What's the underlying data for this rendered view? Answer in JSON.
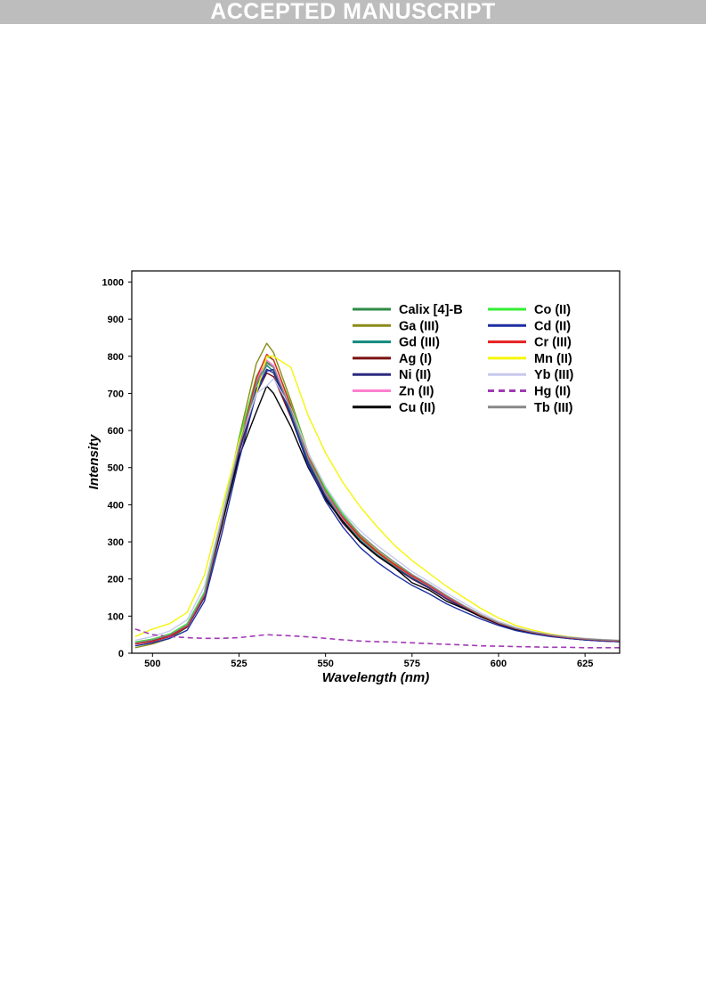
{
  "banner": {
    "text": "ACCEPTED MANUSCRIPT"
  },
  "chart_data": {
    "type": "line",
    "title": "",
    "xlabel": "Wavelength (nm)",
    "ylabel": "Intensity",
    "xlim": [
      494,
      635
    ],
    "ylim": [
      0,
      1030
    ],
    "xticks": [
      500,
      525,
      550,
      575,
      600,
      625
    ],
    "yticks": [
      0,
      100,
      200,
      300,
      400,
      500,
      600,
      700,
      800,
      900,
      1000
    ],
    "grid": false,
    "legend_position": "top-right",
    "legend_columns": 2,
    "x": [
      495,
      500,
      505,
      510,
      515,
      520,
      525,
      530,
      533,
      535,
      540,
      545,
      550,
      555,
      560,
      565,
      570,
      575,
      580,
      585,
      590,
      595,
      600,
      605,
      610,
      615,
      620,
      625,
      630,
      635
    ],
    "series": [
      {
        "name": "Calix [4]-B",
        "color": "#2e8b45",
        "dash": false,
        "values": [
          30,
          38,
          50,
          75,
          160,
          360,
          560,
          730,
          785,
          770,
          650,
          520,
          430,
          360,
          310,
          270,
          235,
          205,
          180,
          150,
          125,
          100,
          80,
          65,
          55,
          48,
          42,
          38,
          35,
          33
        ]
      },
      {
        "name": "Ga (III)",
        "color": "#8b8b1a",
        "dash": false,
        "values": [
          15,
          25,
          40,
          70,
          150,
          360,
          580,
          780,
          835,
          810,
          680,
          540,
          440,
          370,
          315,
          275,
          240,
          210,
          180,
          150,
          125,
          100,
          80,
          65,
          55,
          48,
          42,
          38,
          35,
          33
        ]
      },
      {
        "name": "Gd (III)",
        "color": "#138a7e",
        "dash": false,
        "values": [
          28,
          35,
          48,
          72,
          155,
          350,
          550,
          720,
          775,
          760,
          645,
          515,
          425,
          355,
          305,
          265,
          232,
          202,
          178,
          148,
          123,
          99,
          79,
          64,
          54,
          47,
          41,
          37,
          34,
          32
        ]
      },
      {
        "name": "Ag (I)",
        "color": "#7a1111",
        "dash": false,
        "values": [
          25,
          32,
          45,
          70,
          150,
          340,
          540,
          700,
          755,
          745,
          635,
          510,
          420,
          350,
          300,
          262,
          230,
          200,
          175,
          146,
          121,
          98,
          78,
          63,
          53,
          46,
          40,
          36,
          33,
          31
        ]
      },
      {
        "name": "Ni (II)",
        "color": "#2b2b80",
        "dash": false,
        "values": [
          25,
          32,
          45,
          70,
          150,
          345,
          545,
          710,
          765,
          755,
          640,
          512,
          422,
          352,
          302,
          263,
          231,
          201,
          176,
          147,
          122,
          99,
          79,
          63,
          53,
          46,
          40,
          36,
          33,
          31
        ]
      },
      {
        "name": "Zn (II)",
        "color": "#ff7fd0",
        "dash": false,
        "values": [
          30,
          38,
          52,
          78,
          165,
          365,
          565,
          735,
          790,
          775,
          655,
          525,
          432,
          362,
          312,
          272,
          237,
          207,
          181,
          151,
          126,
          101,
          81,
          66,
          56,
          49,
          43,
          39,
          36,
          34
        ]
      },
      {
        "name": "Cu (II)",
        "color": "#000000",
        "dash": false,
        "values": [
          28,
          35,
          48,
          72,
          160,
          345,
          530,
          650,
          720,
          700,
          610,
          500,
          415,
          355,
          300,
          262,
          230,
          190,
          170,
          140,
          120,
          98,
          80,
          64,
          54,
          47,
          41,
          37,
          34,
          32
        ]
      },
      {
        "name": "Co (II)",
        "color": "#33ee33",
        "dash": false,
        "values": [
          30,
          38,
          52,
          80,
          165,
          370,
          575,
          745,
          800,
          790,
          670,
          540,
          445,
          375,
          320,
          280,
          245,
          212,
          185,
          155,
          128,
          103,
          82,
          67,
          57,
          49,
          43,
          39,
          36,
          34
        ]
      },
      {
        "name": "Cd (II)",
        "color": "#1c2fa0",
        "dash": false,
        "values": [
          20,
          28,
          40,
          62,
          140,
          320,
          520,
          700,
          760,
          765,
          640,
          505,
          410,
          340,
          285,
          245,
          212,
          183,
          160,
          133,
          112,
          92,
          75,
          61,
          52,
          45,
          40,
          36,
          33,
          31
        ]
      },
      {
        "name": "Cr (III)",
        "color": "#e62020",
        "dash": false,
        "values": [
          25,
          32,
          46,
          72,
          155,
          355,
          555,
          740,
          805,
          790,
          665,
          530,
          435,
          365,
          312,
          272,
          238,
          208,
          182,
          152,
          126,
          101,
          81,
          66,
          56,
          48,
          42,
          38,
          35,
          33
        ]
      },
      {
        "name": "Mn (II)",
        "color": "#f5f50a",
        "dash": false,
        "values": [
          45,
          65,
          80,
          110,
          210,
          390,
          570,
          700,
          800,
          800,
          770,
          640,
          540,
          460,
          395,
          340,
          290,
          250,
          215,
          180,
          150,
          120,
          95,
          75,
          62,
          52,
          45,
          40,
          37,
          35
        ]
      },
      {
        "name": "Yb (III)",
        "color": "#c9c9ef",
        "dash": false,
        "values": [
          35,
          45,
          60,
          90,
          180,
          370,
          560,
          700,
          720,
          740,
          660,
          540,
          450,
          380,
          330,
          290,
          255,
          220,
          192,
          162,
          135,
          108,
          86,
          70,
          58,
          50,
          44,
          40,
          37,
          35
        ]
      },
      {
        "name": "Hg (II)",
        "color": "#a03ab4",
        "dash": true,
        "values": [
          65,
          50,
          45,
          42,
          40,
          40,
          42,
          47,
          50,
          49,
          47,
          44,
          40,
          36,
          33,
          31,
          30,
          28,
          26,
          24,
          22,
          20,
          19,
          18,
          17,
          16,
          16,
          15,
          15,
          15
        ]
      },
      {
        "name": "Tb (III)",
        "color": "#888888",
        "dash": false,
        "values": [
          28,
          36,
          50,
          76,
          160,
          355,
          555,
          725,
          780,
          770,
          655,
          525,
          435,
          370,
          320,
          280,
          245,
          212,
          185,
          155,
          128,
          103,
          82,
          67,
          57,
          49,
          43,
          39,
          36,
          34
        ]
      }
    ]
  }
}
